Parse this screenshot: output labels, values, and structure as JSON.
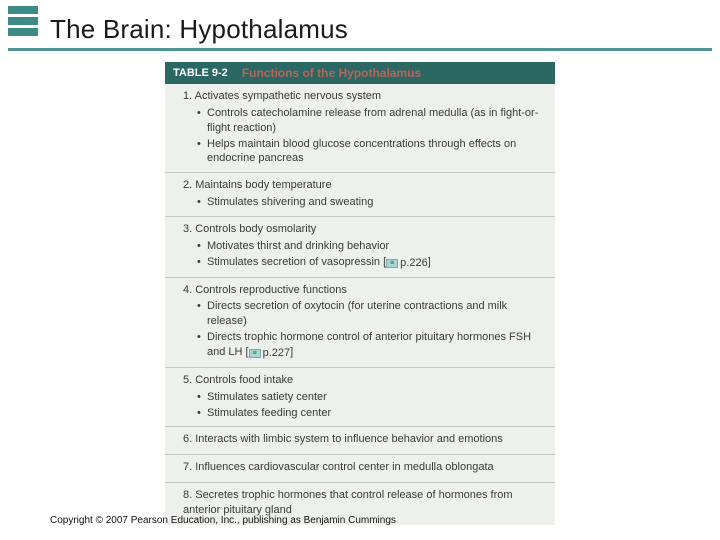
{
  "colors": {
    "teal_dark": "#3e8a87",
    "teal_header": "#4f9490",
    "table_header_bg": "#2b6763",
    "table_title_color": "#b4675b",
    "body_bg": "#eef0ee",
    "divider": "#c6c9c6",
    "text": "#3a3a38",
    "title_text": "#1a1a1a",
    "copyright_text": "#111111"
  },
  "header": {
    "title": "The Brain: Hypothalamus"
  },
  "table": {
    "label": "TABLE 9-2",
    "title": "Functions of the Hypothalamus",
    "items": [
      {
        "num": "1.",
        "main": "Activates sympathetic nervous system",
        "subs": [
          {
            "text": "Controls catecholamine release from adrenal medulla (as in fight-or-flight reaction)"
          },
          {
            "text": "Helps maintain blood glucose concentrations through effects on endocrine pancreas"
          }
        ]
      },
      {
        "num": "2.",
        "main": "Maintains body temperature",
        "subs": [
          {
            "text": "Stimulates shivering and sweating"
          }
        ]
      },
      {
        "num": "3.",
        "main": "Controls body osmolarity",
        "subs": [
          {
            "text": "Motivates thirst and drinking behavior"
          },
          {
            "text": "Stimulates secretion of vasopressin",
            "pageref": "p.226"
          }
        ]
      },
      {
        "num": "4.",
        "main": "Controls reproductive functions",
        "subs": [
          {
            "text": "Directs secretion of oxytocin (for uterine contractions and milk release)"
          },
          {
            "text": "Directs trophic hormone control of anterior pituitary hormones FSH and LH",
            "pageref": "p.227"
          }
        ]
      },
      {
        "num": "5.",
        "main": "Controls food intake",
        "subs": [
          {
            "text": "Stimulates satiety center"
          },
          {
            "text": "Stimulates feeding center"
          }
        ]
      },
      {
        "num": "6.",
        "main": "Interacts with limbic system to influence behavior and emotions",
        "subs": []
      },
      {
        "num": "7.",
        "main": "Influences cardiovascular control center in medulla oblongata",
        "subs": []
      },
      {
        "num": "8.",
        "main": "Secretes trophic hormones that control release of hormones from anterior pituitary gland",
        "subs": []
      }
    ]
  },
  "copyright": "Copyright © 2007 Pearson Education, Inc., publishing as Benjamin Cummings"
}
